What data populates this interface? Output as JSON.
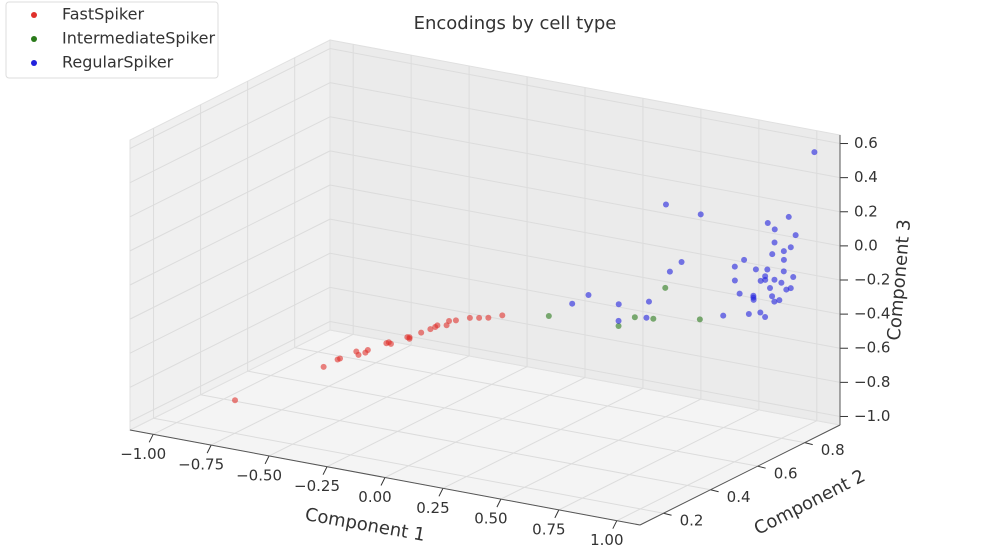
{
  "chart_data": {
    "type": "scatter3d",
    "title": "Encodings by cell type",
    "xlabel": "Component 1",
    "ylabel": "Component 2",
    "zlabel": "Component 3",
    "xlim": [
      -1.1,
      1.1
    ],
    "ylim": [
      0.1,
      0.95
    ],
    "zlim": [
      -1.05,
      0.65
    ],
    "xticks": [
      {
        "value": -1,
        "label": "−1.00"
      },
      {
        "value": -0.75,
        "label": "−0.75"
      },
      {
        "value": -0.5,
        "label": "−0.50"
      },
      {
        "value": -0.25,
        "label": "−0.25"
      },
      {
        "value": 0,
        "label": "0.00"
      },
      {
        "value": 0.25,
        "label": "0.25"
      },
      {
        "value": 0.5,
        "label": "0.50"
      },
      {
        "value": 0.75,
        "label": "0.75"
      },
      {
        "value": 1,
        "label": "1.00"
      }
    ],
    "yticks": [
      0.2,
      0.4,
      0.6,
      0.8
    ],
    "zticks": [
      {
        "value": -1,
        "label": "−1.0"
      },
      {
        "value": -0.8,
        "label": "−0.8"
      },
      {
        "value": -0.6,
        "label": "−0.6"
      },
      {
        "value": -0.4,
        "label": "−0.4"
      },
      {
        "value": -0.2,
        "label": "−0.2"
      },
      {
        "value": 0,
        "label": "0.0"
      },
      0.2,
      0.4,
      0.6
    ],
    "grid": true,
    "legend": "upper left",
    "series": [
      {
        "name": "FastSpiker",
        "color": "#e0302b",
        "x": [
          -0.85,
          -0.62,
          -0.6,
          -0.58,
          -0.55,
          -0.5,
          -0.48,
          -0.45,
          -0.42,
          -0.4,
          -0.36,
          -0.33,
          -0.3,
          -0.27,
          -0.25,
          -0.22,
          -0.2,
          -0.18,
          -0.15,
          -0.12,
          -0.1,
          -0.05,
          0.0,
          0.05,
          0.1
        ],
        "y": [
          0.3,
          0.45,
          0.5,
          0.47,
          0.52,
          0.48,
          0.5,
          0.46,
          0.53,
          0.5,
          0.48,
          0.52,
          0.5,
          0.47,
          0.5,
          0.53,
          0.49,
          0.5,
          0.52,
          0.48,
          0.5,
          0.51,
          0.5,
          0.49,
          0.5
        ],
        "z": [
          -0.95,
          -0.8,
          -0.78,
          -0.76,
          -0.74,
          -0.72,
          -0.7,
          -0.68,
          -0.66,
          -0.64,
          -0.62,
          -0.6,
          -0.58,
          -0.56,
          -0.54,
          -0.52,
          -0.5,
          -0.48,
          -0.46,
          -0.45,
          -0.43,
          -0.41,
          -0.39,
          -0.37,
          -0.35
        ]
      },
      {
        "name": "IntermediateSpiker",
        "color": "#2a7a1a",
        "x": [
          0.25,
          0.5,
          0.55,
          0.6,
          0.65,
          0.8
        ],
        "y": [
          0.55,
          0.6,
          0.62,
          0.7,
          0.6,
          0.65
        ],
        "z": [
          -0.35,
          -0.38,
          -0.33,
          -0.2,
          -0.3,
          -0.3
        ]
      },
      {
        "name": "RegularSpiker",
        "color": "#2222dd",
        "x": [
          0.3,
          0.35,
          0.45,
          0.5,
          0.55,
          0.6,
          0.62,
          0.65,
          0.4,
          0.55,
          0.85,
          0.87,
          0.88,
          0.9,
          0.9,
          0.91,
          0.92,
          0.93,
          0.93,
          0.94,
          0.95,
          0.95,
          0.96,
          0.96,
          0.97,
          0.97,
          0.98,
          0.98,
          0.99,
          0.99,
          1.0,
          1.0,
          1.01,
          1.01,
          1.02,
          1.02,
          1.03,
          1.03,
          1.04,
          1.04,
          1.05,
          0.89,
          0.92,
          0.95,
          1.0,
          1.02
        ],
        "y": [
          0.6,
          0.62,
          0.65,
          0.6,
          0.68,
          0.62,
          0.7,
          0.72,
          0.9,
          0.9,
          0.7,
          0.75,
          0.72,
          0.78,
          0.7,
          0.8,
          0.74,
          0.76,
          0.82,
          0.7,
          0.78,
          0.84,
          0.72,
          0.8,
          0.76,
          0.85,
          0.7,
          0.79,
          0.74,
          0.82,
          0.77,
          0.71,
          0.8,
          0.75,
          0.83,
          0.72,
          0.78,
          0.74,
          0.8,
          0.76,
          0.79,
          0.85,
          0.85,
          0.88,
          0.86,
          0.92
        ],
        "z": [
          -0.3,
          -0.25,
          -0.3,
          -0.35,
          -0.28,
          -0.32,
          -0.1,
          -0.05,
          0.1,
          0.08,
          -0.3,
          -0.2,
          -0.1,
          -0.25,
          0.0,
          -0.15,
          -0.3,
          -0.05,
          -0.2,
          0.05,
          -0.12,
          -0.28,
          -0.18,
          0.02,
          -0.08,
          -0.22,
          -0.15,
          0.1,
          -0.3,
          -0.02,
          -0.1,
          -0.25,
          0.05,
          -0.18,
          -0.12,
          0.0,
          -0.05,
          -0.2,
          0.08,
          -0.1,
          -0.15,
          0.15,
          0.12,
          0.18,
          0.1,
          0.55
        ]
      }
    ]
  }
}
